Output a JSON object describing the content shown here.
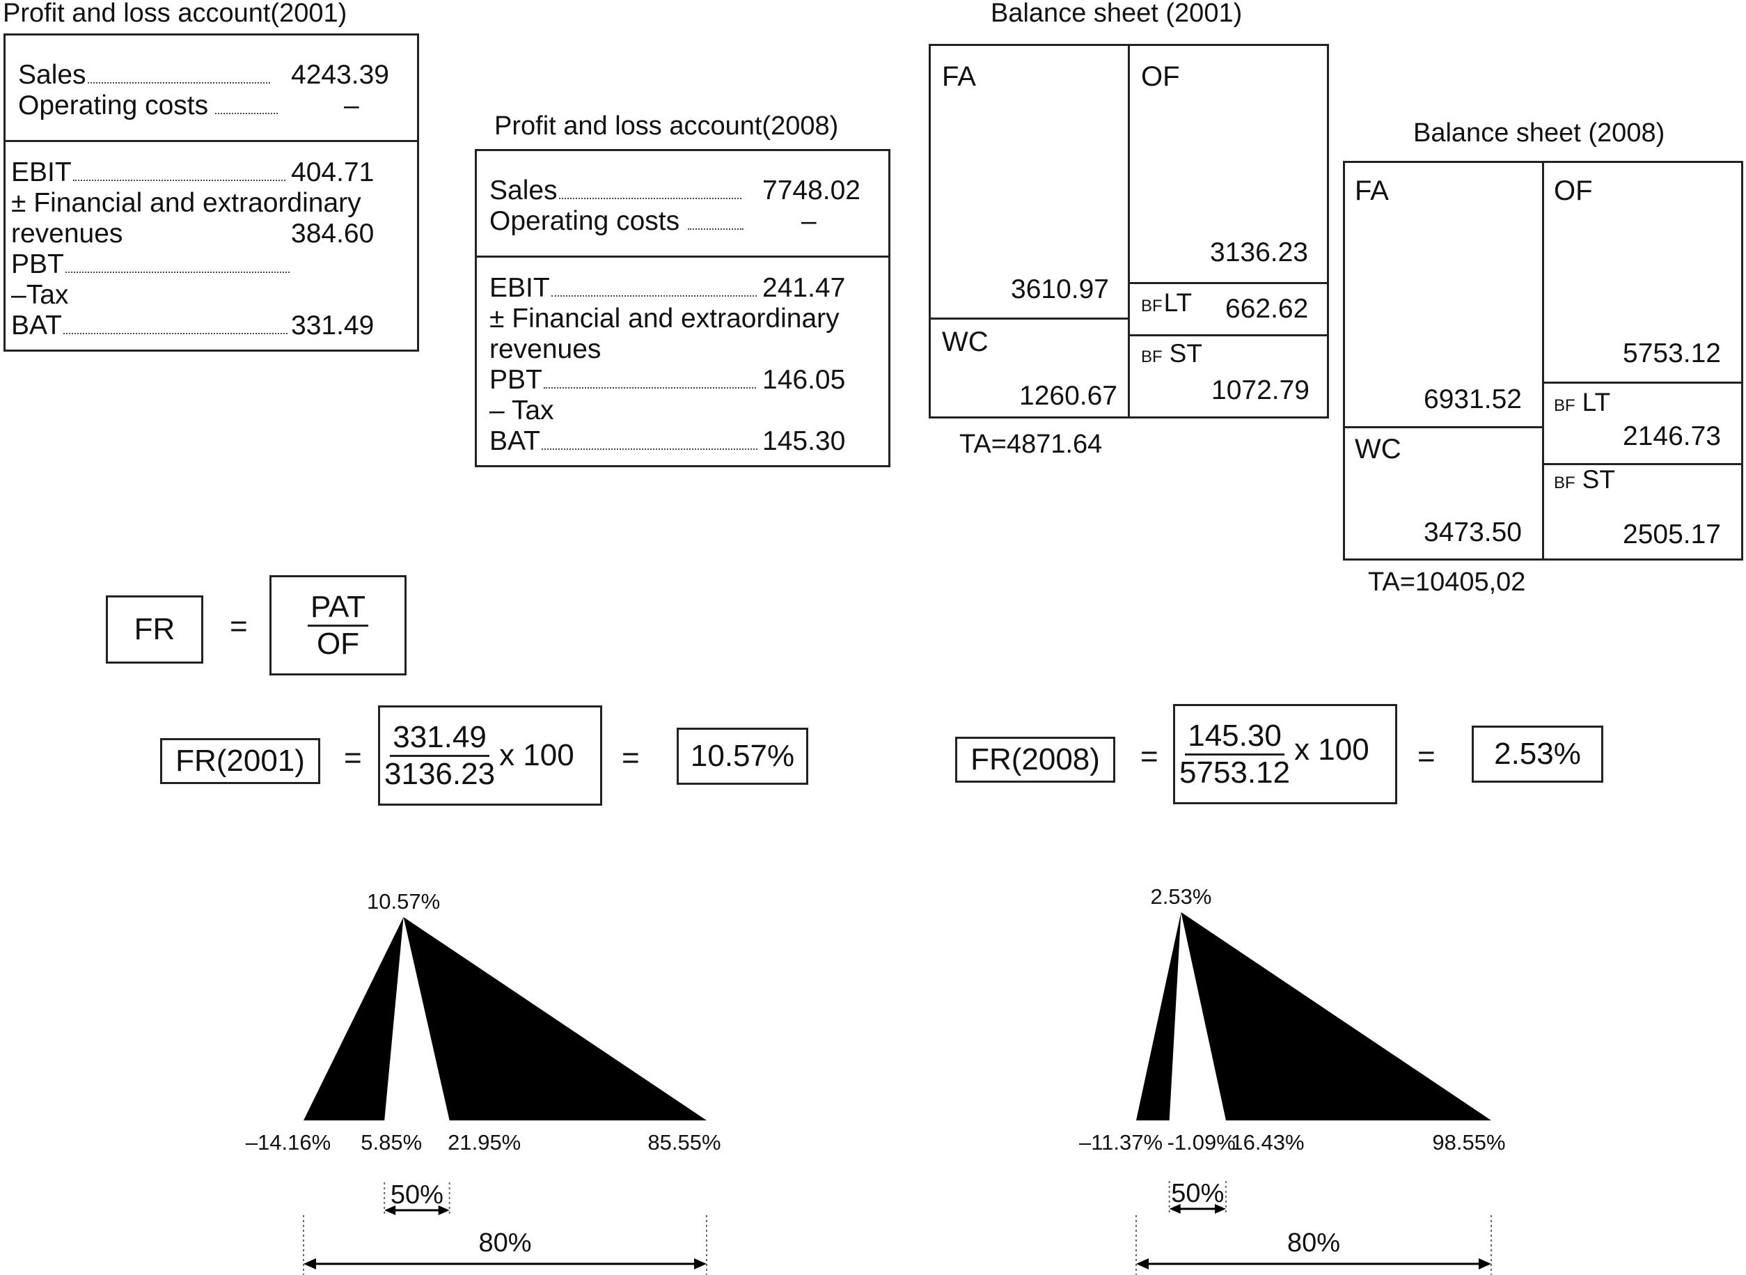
{
  "pl2001": {
    "title": "Profit and loss account(2001)",
    "sales_label": "Sales",
    "sales_value": "4243.39",
    "opcosts_label": "Operating costs",
    "opcosts_value": "–",
    "ebit_label": "EBIT",
    "ebit_value": "404.71",
    "fin_label_1": "± Financial and extraordinary",
    "fin_label_2": "revenues",
    "fin_value": "384.60",
    "pbt_label": "PBT",
    "tax_label": "–Tax",
    "bat_label": "BAT",
    "bat_value": "331.49"
  },
  "pl2008": {
    "title": "Profit and loss account(2008)",
    "sales_label": "Sales",
    "sales_value": "7748.02",
    "opcosts_label": "Operating costs",
    "opcosts_value": "–",
    "ebit_label": "EBIT",
    "ebit_value": "241.47",
    "fin_label_1": "± Financial and extraordinary",
    "fin_label_2": "revenues",
    "pbt_label": "PBT",
    "pbt_value": "146.05",
    "tax_label": "– Tax",
    "bat_label": "BAT",
    "bat_value": "145.30"
  },
  "bs2001": {
    "title": "Balance sheet (2001)",
    "fa_label": "FA",
    "fa_value": "3610.97",
    "of_label": "OF",
    "of_value": "3136.23",
    "wc_label": "WC",
    "wc_value": "1260.67",
    "bf_prefix": "BF",
    "lt_label": "LT",
    "lt_value": "662.62",
    "st_label": "ST",
    "st_value": "1072.79",
    "ta": "TA=4871.64"
  },
  "bs2008": {
    "title": "Balance sheet (2008)",
    "fa_label": "FA",
    "fa_value": "6931.52",
    "of_label": "OF",
    "of_value": "5753.12",
    "wc_label": "WC",
    "wc_value": "3473.50",
    "bf_prefix": "BF",
    "lt_label": "LT",
    "lt_value": "2146.73",
    "st_label": "ST",
    "st_value": "2505.17",
    "ta": "TA=10405,02"
  },
  "formula": {
    "lhs": "FR",
    "eq": "=",
    "numerator": "PAT",
    "denominator": "OF"
  },
  "calc2001": {
    "lhs": "FR(2001)",
    "eq": "=",
    "numerator": "331.49",
    "denominator": "3136.23",
    "times": "x 100",
    "result": "10.57%"
  },
  "calc2008": {
    "lhs": "FR(2008)",
    "eq": "=",
    "numerator": "145.30",
    "denominator": "5753.12",
    "times": "x 100",
    "result": "2.53%"
  },
  "dist2001": {
    "peak": 10.57,
    "peak_label": "10.57%",
    "min": -14.16,
    "min_label": "–14.16%",
    "inner_low": 5.85,
    "inner_low_label": "5.85%",
    "inner_high": 21.95,
    "inner_high_label": "21.95%",
    "max": 85.55,
    "max_label": "85.55%",
    "inner_pct": "50%",
    "outer_pct": "80%"
  },
  "dist2008": {
    "peak": 2.53,
    "peak_label": "2.53%",
    "min": -11.37,
    "min_label": "–11.37%",
    "inner_low": -1.09,
    "inner_low_label": "-1.09%",
    "inner_high": 16.43,
    "inner_high_label": "16.43%",
    "max": 98.55,
    "max_label": "98.55%",
    "inner_pct": "50%",
    "outer_pct": "80%"
  }
}
